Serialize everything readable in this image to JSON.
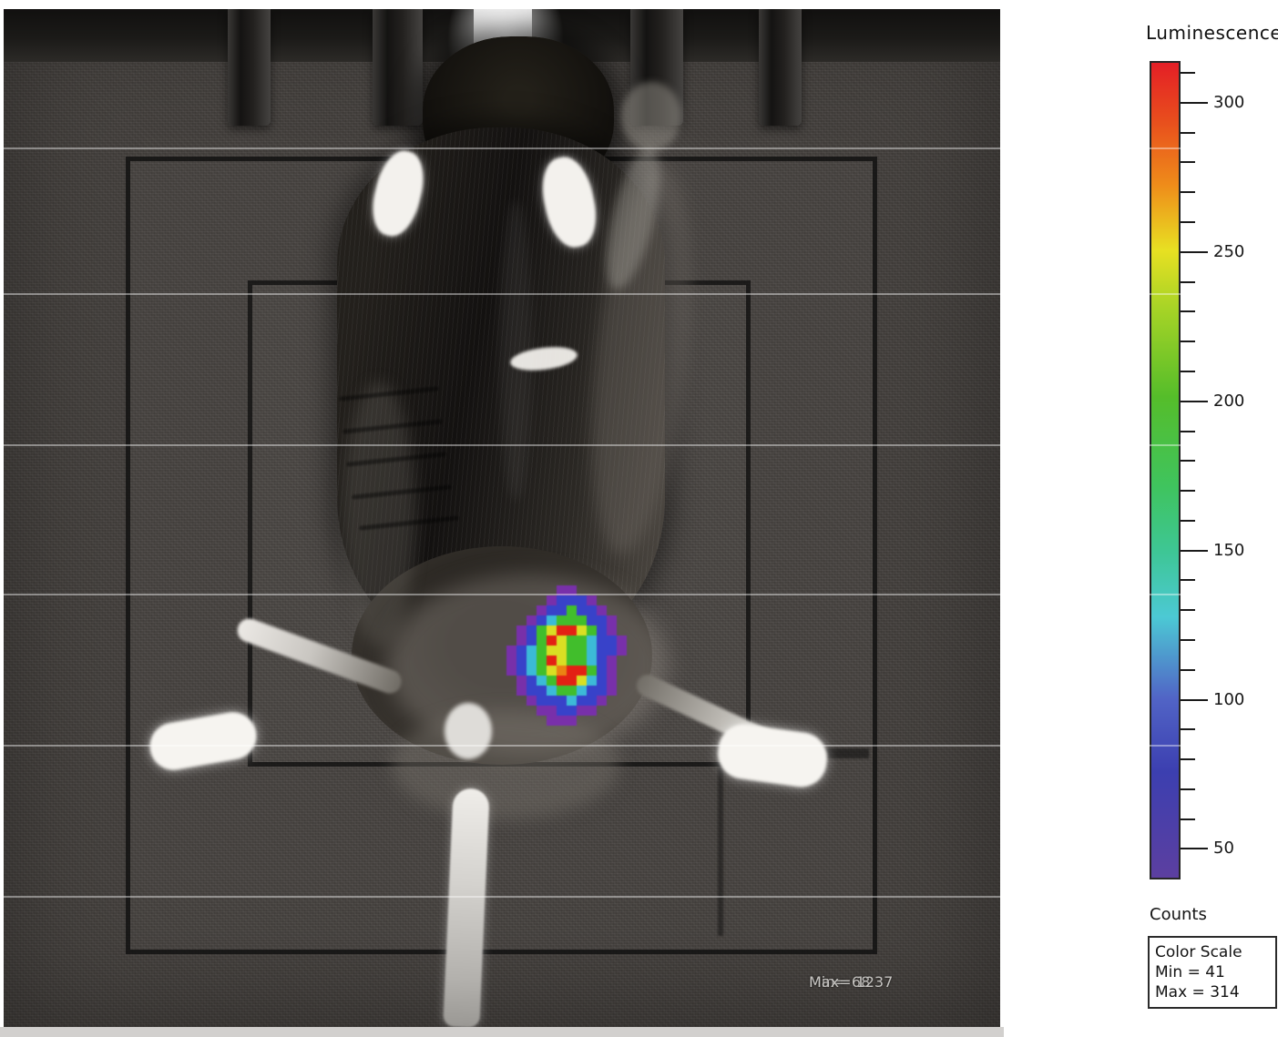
{
  "colorbar": {
    "title": "Luminescence",
    "units_label": "Counts",
    "range_min": 41,
    "range_max": 314,
    "tick_top_value": 310,
    "tick_bottom_value": 50,
    "minor_step": 10,
    "major_label_multiple": 50,
    "major_tick_labels": [
      "300",
      "250",
      "200",
      "150",
      "100",
      "50"
    ],
    "gradient_stops": [
      [
        0,
        "#e41f26"
      ],
      [
        7,
        "#e84d1d"
      ],
      [
        15,
        "#ef8c1a"
      ],
      [
        23,
        "#e8e022"
      ],
      [
        30,
        "#a8d426"
      ],
      [
        41,
        "#55bd2a"
      ],
      [
        52,
        "#3fc45e"
      ],
      [
        60,
        "#3ec695"
      ],
      [
        68,
        "#4cc9d4"
      ],
      [
        78,
        "#5164c6"
      ],
      [
        87,
        "#3c3fb0"
      ],
      [
        100,
        "#5c3fa0"
      ]
    ]
  },
  "color_scale_box": {
    "title": "Color Scale",
    "min_label": "Min = 41",
    "max_label": "Max = 314"
  },
  "image_overlay": {
    "min_label": "Min= 68",
    "max_label": "Max= 1237"
  },
  "signal_blob": {
    "palette": {
      "P": "#7a2fae",
      "B": "#3742cf",
      "C": "#3bbfdd",
      "G": "#41c32b",
      "Y": "#dfe522",
      "O": "#f28511",
      "R": "#e92012"
    },
    "rows": [
      "......PP......",
      ".....PBBBP....",
      "....PBBGBBP...",
      "...PBCGGGBBP..",
      "..PBGYRRYGBP..",
      "..PBGRYGGCBBP.",
      ".PBCGYYGGCBBP.",
      ".PBCGRYGGCBP..",
      ".PBCGYORRGBP..",
      "..PBCGRRYCBP..",
      "..PBBCGGCBBP..",
      "...PBBBCBBP...",
      "....PPBBPP....",
      ".....PPP......"
    ]
  }
}
